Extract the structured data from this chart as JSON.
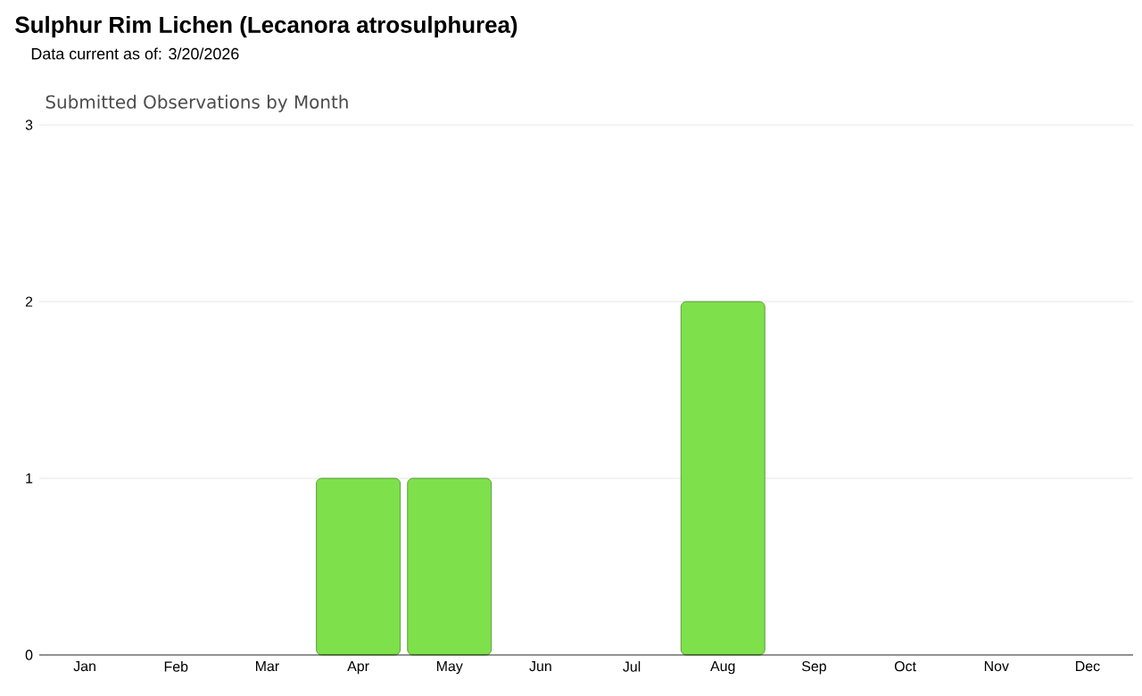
{
  "chart_data": {
    "type": "bar",
    "title": "Sulphur Rim Lichen   (Lecanora atrosulphurea)",
    "subtitle": "Data current as of: 3/20/2026",
    "annotations": [
      "Submitted Observations by Month"
    ],
    "categories": [
      "Jan",
      "Feb",
      "Mar",
      "Apr",
      "May",
      "Jun",
      "Jul",
      "Aug",
      "Sep",
      "Oct",
      "Nov",
      "Dec"
    ],
    "values": [
      0,
      0,
      0,
      1,
      1,
      0,
      0,
      2,
      0,
      0,
      0,
      0
    ],
    "color": "#7ee04a",
    "ylim": [
      0,
      3
    ],
    "yticks": [
      0,
      1,
      2,
      3
    ],
    "grid": "y"
  }
}
